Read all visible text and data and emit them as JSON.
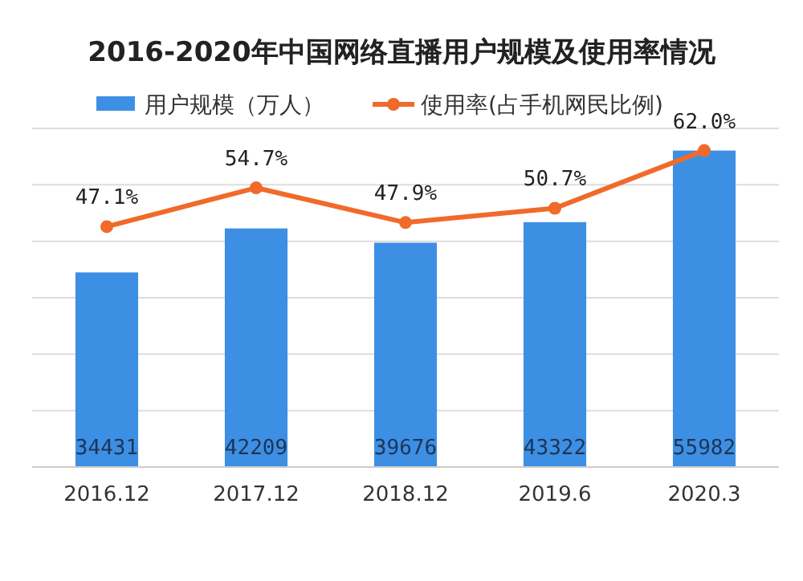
{
  "chart_data": {
    "type": "bar",
    "title": "2016-2020年中国网络直播用户规模及使用率情况",
    "categories": [
      "2016.12",
      "2017.12",
      "2018.12",
      "2019.6",
      "2020.3"
    ],
    "series": [
      {
        "name": "用户规模（万人）",
        "color": "#3d8fe3",
        "values": [
          34431,
          42209,
          39676,
          43322,
          55982
        ],
        "value_labels": [
          "34431",
          "42209",
          "39676",
          "43322",
          "55982"
        ]
      },
      {
        "name": "使用率(占手机网民比例)",
        "type": "line",
        "axis": "y2",
        "color": "#f06a2a",
        "values": [
          47.1,
          54.7,
          47.9,
          50.7,
          62.0
        ],
        "value_labels": [
          "47.1%",
          "54.7%",
          "47.9%",
          "50.7%",
          "62.0%"
        ]
      }
    ],
    "legend": "top",
    "marker": "circle",
    "grid": "y",
    "tick_labels": "x"
  }
}
